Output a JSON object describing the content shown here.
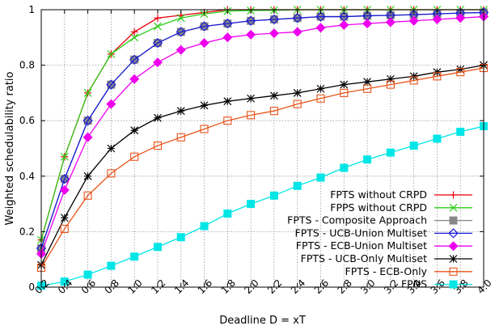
{
  "chart_data": {
    "type": "line",
    "xlabel": "Deadline D = xT",
    "ylabel": "Weighted schedulability ratio",
    "x": [
      0.2,
      0.4,
      0.6,
      0.8,
      1.0,
      1.2,
      1.4,
      1.6,
      1.8,
      2.0,
      2.2,
      2.4,
      2.6,
      2.8,
      3.0,
      3.2,
      3.4,
      3.6,
      3.8,
      4.0
    ],
    "x_tick_labels": [
      "0.2",
      "0.4",
      "0.6",
      "0.8",
      "1.0",
      "1.2",
      "1.4",
      "1.6",
      "1.8",
      "2.0",
      "2.2",
      "2.4",
      "2.6",
      "2.8",
      "3.0",
      "3.2",
      "3.4",
      "3.6",
      "3.8",
      "4.0"
    ],
    "y_ticks": [
      0,
      0.2,
      0.4,
      0.6,
      0.8,
      1
    ],
    "y_tick_labels": [
      "0",
      "0.2",
      "0.4",
      "0.6",
      "0.8",
      "1"
    ],
    "xlim": [
      0.2,
      4.0
    ],
    "ylim": [
      0,
      1
    ],
    "grid": true,
    "legend_position": "bottom-right",
    "series": [
      {
        "name": "FPTS without CRPD",
        "color": "#e8000b",
        "marker": "plus",
        "values": [
          0.17,
          0.47,
          0.7,
          0.84,
          0.92,
          0.97,
          0.98,
          0.99,
          1.0,
          1.0,
          1.0,
          1.0,
          1.0,
          1.0,
          1.0,
          1.0,
          1.0,
          1.0,
          1.0,
          1.0
        ]
      },
      {
        "name": "FPPS without CRPD",
        "color": "#2ecc17",
        "marker": "cross",
        "values": [
          0.17,
          0.47,
          0.7,
          0.84,
          0.9,
          0.94,
          0.97,
          0.985,
          0.995,
          0.997,
          0.998,
          1.0,
          1.0,
          1.0,
          1.0,
          1.0,
          1.0,
          1.0,
          1.0,
          1.0
        ]
      },
      {
        "name": "FPTS - Composite Approach",
        "color": "#888888",
        "marker": "square-filled",
        "values": [
          0.14,
          0.39,
          0.6,
          0.73,
          0.82,
          0.88,
          0.92,
          0.94,
          0.95,
          0.96,
          0.965,
          0.97,
          0.975,
          0.975,
          0.978,
          0.98,
          0.982,
          0.985,
          0.988,
          0.99
        ]
      },
      {
        "name": "FPTS - UCB-Union Multiset",
        "color": "#1a1ad6",
        "marker": "diamond-open",
        "values": [
          0.14,
          0.39,
          0.6,
          0.73,
          0.82,
          0.88,
          0.92,
          0.94,
          0.95,
          0.96,
          0.965,
          0.97,
          0.975,
          0.975,
          0.978,
          0.98,
          0.982,
          0.985,
          0.988,
          0.99
        ]
      },
      {
        "name": "FPTS - ECB-Union Multiset",
        "color": "#ee00ee",
        "marker": "diamond-filled",
        "values": [
          0.12,
          0.35,
          0.54,
          0.66,
          0.75,
          0.81,
          0.855,
          0.88,
          0.9,
          0.91,
          0.915,
          0.92,
          0.935,
          0.945,
          0.95,
          0.955,
          0.96,
          0.965,
          0.97,
          0.975
        ]
      },
      {
        "name": "FPTS - UCB-Only Multiset",
        "color": "#000000",
        "marker": "asterisk",
        "values": [
          0.08,
          0.25,
          0.4,
          0.5,
          0.565,
          0.61,
          0.635,
          0.655,
          0.67,
          0.68,
          0.69,
          0.7,
          0.715,
          0.73,
          0.74,
          0.75,
          0.76,
          0.775,
          0.785,
          0.8
        ]
      },
      {
        "name": "FPTS - ECB-Only",
        "color": "#e8541a",
        "marker": "square-open",
        "values": [
          0.07,
          0.21,
          0.33,
          0.41,
          0.47,
          0.51,
          0.54,
          0.57,
          0.6,
          0.62,
          0.635,
          0.66,
          0.68,
          0.7,
          0.715,
          0.73,
          0.745,
          0.76,
          0.775,
          0.79
        ]
      },
      {
        "name": "FPNS",
        "color": "#00e5e5",
        "marker": "square-filled",
        "values": [
          0.005,
          0.02,
          0.045,
          0.077,
          0.11,
          0.145,
          0.18,
          0.22,
          0.265,
          0.3,
          0.33,
          0.365,
          0.395,
          0.43,
          0.46,
          0.485,
          0.51,
          0.535,
          0.56,
          0.58
        ]
      }
    ]
  }
}
